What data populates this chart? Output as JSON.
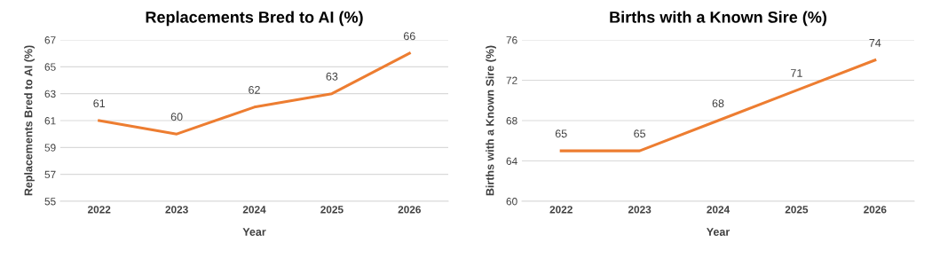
{
  "chart_data": [
    {
      "type": "line",
      "title": "Replacements Bred to AI (%)",
      "xlabel": "Year",
      "ylabel": "Replacements Bred to AI (%)",
      "categories": [
        "2022",
        "2023",
        "2024",
        "2025",
        "2026"
      ],
      "series": [
        {
          "color": "#ed7d31",
          "values": [
            61,
            60,
            62,
            63,
            66
          ]
        }
      ],
      "ylim": [
        55,
        67
      ],
      "yticks": [
        55,
        57,
        59,
        61,
        63,
        65,
        67
      ],
      "grid": "y",
      "data_labels": true
    },
    {
      "type": "line",
      "title": "Births with a Known Sire (%)",
      "xlabel": "Year",
      "ylabel": "Births with a Known Sire (%)",
      "categories": [
        "2022",
        "2023",
        "2024",
        "2025",
        "2026"
      ],
      "series": [
        {
          "color": "#ed7d31",
          "values": [
            65,
            65,
            68,
            71,
            74
          ]
        }
      ],
      "ylim": [
        60,
        76
      ],
      "yticks": [
        60,
        64,
        68,
        72,
        76
      ],
      "grid": "y",
      "data_labels": true
    }
  ]
}
